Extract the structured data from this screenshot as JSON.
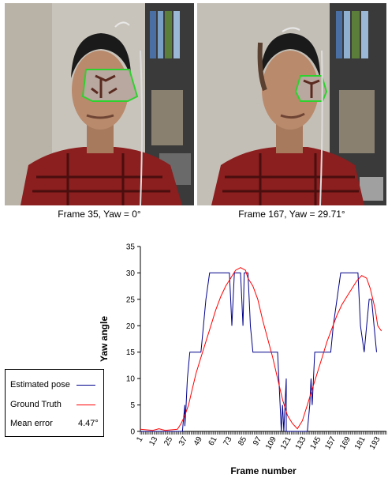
{
  "captions": {
    "left": "Frame 35, Yaw = 0°",
    "right": "Frame 167, Yaw = 29.71°"
  },
  "legend": {
    "estimated": "Estimated pose",
    "ground_truth": "Ground Truth",
    "mean_error_label": "Mean error",
    "mean_error_value": "4.47°"
  },
  "chart_data": {
    "type": "line",
    "xlabel": "Frame number",
    "ylabel": "Yaw angle",
    "xlim": [
      1,
      200
    ],
    "ylim": [
      0,
      35
    ],
    "y_ticks": [
      0,
      5,
      10,
      15,
      20,
      25,
      30,
      35
    ],
    "x_tick_labels": [
      "1",
      "13",
      "25",
      "37",
      "49",
      "61",
      "73",
      "85",
      "97",
      "109",
      "121",
      "133",
      "145",
      "157",
      "169",
      "181",
      "193"
    ],
    "series": [
      {
        "name": "Estimated pose",
        "color": "#00008b",
        "points": [
          [
            1,
            0
          ],
          [
            29,
            0
          ],
          [
            35,
            0
          ],
          [
            37,
            5
          ],
          [
            37,
            1
          ],
          [
            38,
            5
          ],
          [
            39,
            10
          ],
          [
            41,
            15
          ],
          [
            50,
            15
          ],
          [
            52,
            20
          ],
          [
            54,
            25
          ],
          [
            57,
            30
          ],
          [
            73,
            30
          ],
          [
            74,
            25
          ],
          [
            75,
            20
          ],
          [
            76,
            25
          ],
          [
            77,
            30
          ],
          [
            82,
            30
          ],
          [
            83,
            25
          ],
          [
            84,
            20
          ],
          [
            85,
            30
          ],
          [
            88,
            30
          ],
          [
            89,
            25
          ],
          [
            90,
            20
          ],
          [
            92,
            15
          ],
          [
            112,
            15
          ],
          [
            113,
            10
          ],
          [
            114,
            5
          ],
          [
            115,
            0
          ],
          [
            116,
            5
          ],
          [
            117,
            0
          ],
          [
            118,
            5
          ],
          [
            119,
            10
          ],
          [
            119,
            0
          ],
          [
            123,
            0
          ],
          [
            125,
            0
          ],
          [
            128,
            0
          ],
          [
            130,
            0
          ],
          [
            134,
            0
          ],
          [
            136,
            0
          ],
          [
            138,
            5
          ],
          [
            139,
            10
          ],
          [
            140,
            5
          ],
          [
            141,
            10
          ],
          [
            142,
            15
          ],
          [
            155,
            15
          ],
          [
            157,
            20
          ],
          [
            160,
            25
          ],
          [
            163,
            30
          ],
          [
            177,
            30
          ],
          [
            178,
            25
          ],
          [
            179,
            20
          ],
          [
            182,
            15
          ],
          [
            184,
            20
          ],
          [
            186,
            25
          ],
          [
            188,
            25
          ],
          [
            190,
            20
          ],
          [
            192,
            15
          ]
        ]
      },
      {
        "name": "Ground Truth",
        "color": "#ff0000",
        "points": [
          [
            1,
            0.4
          ],
          [
            6,
            0.3
          ],
          [
            11,
            0.2
          ],
          [
            16,
            0.5
          ],
          [
            21,
            0.2
          ],
          [
            26,
            0.3
          ],
          [
            31,
            0.4
          ],
          [
            34,
            1.5
          ],
          [
            37,
            3
          ],
          [
            40,
            5
          ],
          [
            43,
            8
          ],
          [
            46,
            11
          ],
          [
            50,
            14
          ],
          [
            54,
            17
          ],
          [
            58,
            20
          ],
          [
            62,
            23
          ],
          [
            66,
            25.5
          ],
          [
            70,
            27.5
          ],
          [
            74,
            29
          ],
          [
            78,
            30.5
          ],
          [
            82,
            31
          ],
          [
            86,
            30.5
          ],
          [
            88,
            29
          ],
          [
            92,
            27.5
          ],
          [
            96,
            25
          ],
          [
            100,
            21
          ],
          [
            104,
            17.5
          ],
          [
            108,
            14
          ],
          [
            112,
            10
          ],
          [
            116,
            6
          ],
          [
            120,
            3
          ],
          [
            124,
            1.5
          ],
          [
            128,
            0.5
          ],
          [
            132,
            2
          ],
          [
            136,
            5
          ],
          [
            140,
            8
          ],
          [
            144,
            11
          ],
          [
            148,
            14
          ],
          [
            152,
            17
          ],
          [
            156,
            19.5
          ],
          [
            160,
            22
          ],
          [
            164,
            24
          ],
          [
            168,
            25.5
          ],
          [
            172,
            27
          ],
          [
            176,
            28.5
          ],
          [
            180,
            29.5
          ],
          [
            184,
            29
          ],
          [
            187,
            27
          ],
          [
            189,
            25
          ],
          [
            191,
            23
          ],
          [
            193,
            20
          ],
          [
            196,
            19
          ]
        ]
      }
    ]
  }
}
